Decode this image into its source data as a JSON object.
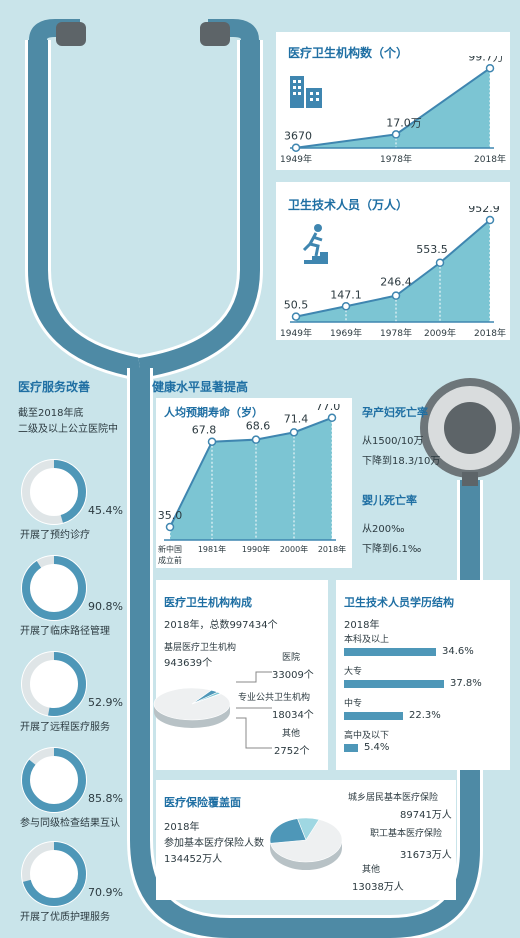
{
  "colors": {
    "bg": "#c9e4ea",
    "accent": "#1f6fa3",
    "fill": "#7cc5d3",
    "tube": "#4e8aa5",
    "panel": "#ffffff"
  },
  "icons": [
    "building-icon",
    "runner-stairs-icon",
    "stethoscope-icon"
  ],
  "section_institutions": {
    "title": "医疗卫生机构数（个）"
  },
  "section_staff": {
    "title": "卫生技术人员（万人）"
  },
  "section_services": {
    "title": "医疗服务改善",
    "intro1": "截至2018年底",
    "intro2": "二级及以上公立医院中",
    "items": [
      {
        "pct": "45.4%",
        "label": "开展了预约诊疗"
      },
      {
        "pct": "90.8%",
        "label": "开展了临床路径管理"
      },
      {
        "pct": "52.9%",
        "label": "开展了远程医疗服务"
      },
      {
        "pct": "85.8%",
        "label": "参与同级检查结果互认"
      },
      {
        "pct": "70.9%",
        "label": "开展了优质护理服务"
      }
    ]
  },
  "section_health": {
    "title": "健康水平显著提高",
    "life_title": "人均预期寿命（岁）",
    "maternal_title": "孕产妇死亡率",
    "maternal_from": "从1500/10万",
    "maternal_to": "下降到18.3/10万",
    "infant_title": "婴儿死亡率",
    "infant_from": "从200‰",
    "infant_to": "下降到6.1‰"
  },
  "section_composition": {
    "title": "医疗卫生机构构成",
    "subtitle": "2018年，总数997434个",
    "primary_label": "基层医疗卫生机构",
    "primary_value": "943639个",
    "hospital_label": "医院",
    "hospital_value": "33009个",
    "public_label": "专业公共卫生机构",
    "public_value": "18034个",
    "other_label": "其他",
    "other_value": "2752个"
  },
  "section_education": {
    "title": "卫生技术人员学历结构",
    "year": "2018年"
  },
  "section_insurance": {
    "title": "医疗保险覆盖面",
    "line1": "2018年",
    "line2": "参加基本医疗保险人数",
    "line3": "134452万人",
    "a_label": "城乡居民基本医疗保险",
    "a_value": "89741万人",
    "b_label": "职工基本医疗保险",
    "b_value": "31673万人",
    "c_label": "其他",
    "c_value": "13038万人"
  },
  "chart_data": [
    {
      "type": "area",
      "title": "医疗卫生机构数（个）",
      "x": [
        "1949年",
        "1978年",
        "2018年"
      ],
      "values": [
        3670,
        170000,
        997000
      ],
      "labels": [
        "3670",
        "17.0万",
        "99.7万"
      ]
    },
    {
      "type": "area",
      "title": "卫生技术人员（万人）",
      "x": [
        "1949年",
        "1969年",
        "1978年",
        "2009年",
        "2018年"
      ],
      "values": [
        50.5,
        147.1,
        246.4,
        553.5,
        952.9
      ],
      "labels": [
        "50.5",
        "147.1",
        "246.4",
        "553.5",
        "952.9"
      ]
    },
    {
      "type": "area",
      "title": "人均预期寿命（岁）",
      "x": [
        "新中国成立前",
        "1981年",
        "1990年",
        "2000年",
        "2018年"
      ],
      "values": [
        35.0,
        67.8,
        68.6,
        71.4,
        77.0
      ],
      "labels": [
        "35.0",
        "67.8",
        "68.6",
        "71.4",
        "77.0"
      ]
    },
    {
      "type": "bar",
      "title": "卫生技术人员学历结构",
      "categories": [
        "本科及以上",
        "大专",
        "中专",
        "高中及以下"
      ],
      "values": [
        34.6,
        37.8,
        22.3,
        5.4
      ],
      "labels": [
        "34.6%",
        "37.8%",
        "22.3%",
        "5.4%"
      ]
    },
    {
      "type": "pie",
      "title": "医疗卫生机构构成",
      "categories": [
        "基层医疗卫生机构",
        "医院",
        "专业公共卫生机构",
        "其他"
      ],
      "values": [
        943639,
        33009,
        18034,
        2752
      ]
    },
    {
      "type": "pie",
      "title": "医疗保险覆盖面",
      "categories": [
        "城乡居民基本医疗保险",
        "职工基本医疗保险",
        "其他"
      ],
      "values": [
        89741,
        31673,
        13038
      ]
    },
    {
      "type": "donut",
      "title": "医疗服务改善",
      "categories": [
        "开展了预约诊疗",
        "开展了临床路径管理",
        "开展了远程医疗服务",
        "参与同级检查结果互认",
        "开展了优质护理服务"
      ],
      "values": [
        45.4,
        90.8,
        52.9,
        85.8,
        70.9
      ]
    }
  ]
}
